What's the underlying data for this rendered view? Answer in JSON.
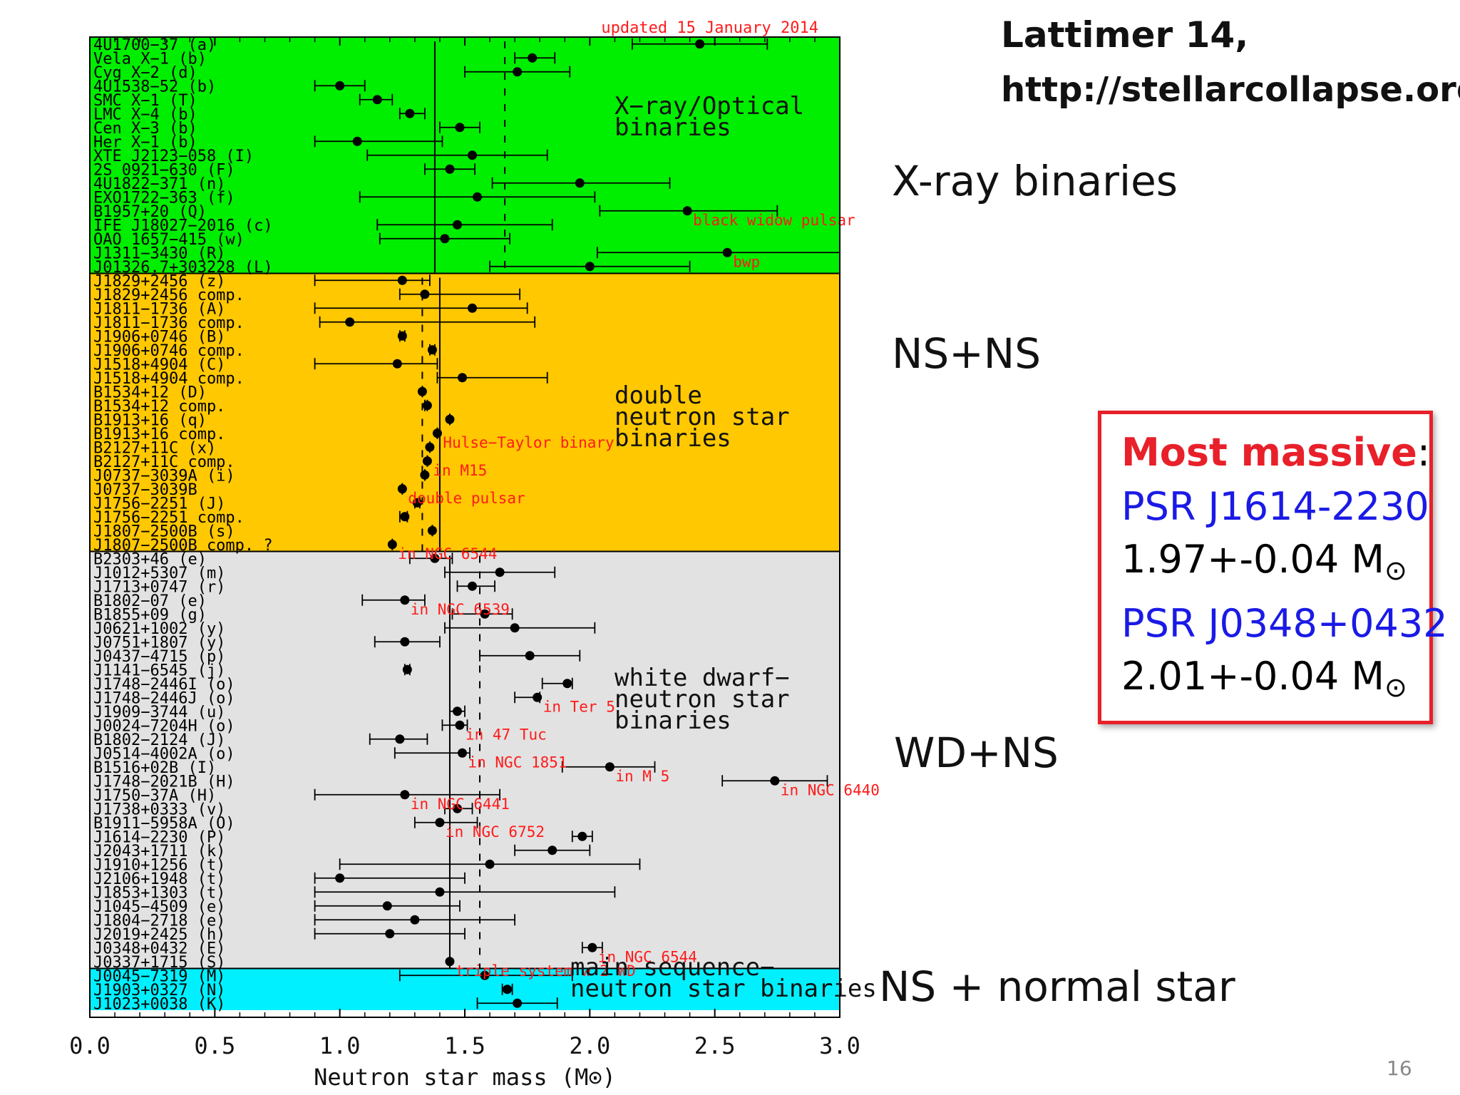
{
  "header": {
    "credit_title": "Lattimer 14,",
    "credit_url": "http://stellarcollapse.org"
  },
  "side_labels": {
    "xray": "X-ray binaries",
    "nsns": "NS+NS",
    "wdns": "WD+NS",
    "ms": "NS + normal star"
  },
  "highlight_box": {
    "title": "Most massive",
    "colon": ":",
    "pulsar1": "PSR J1614-2230",
    "mass1": "1.97+-0.04 M",
    "pulsar2": "PSR J0348+0432",
    "mass2": "2.01+-0.04 M",
    "sun_symbol": "⊙"
  },
  "page_number": "16",
  "colors": {
    "xray": "#00ee00",
    "dns": "#ffc800",
    "wd": "#e2e2e2",
    "ms": "#00f0ff",
    "red": "#ff1a1a",
    "box_border": "#e8202a",
    "blue": "#1a1ae6"
  },
  "chart_data": {
    "type": "scatter",
    "title": "updated 15 January 2014",
    "xlabel": "Neutron star mass (M⊙)",
    "xlim": [
      0.0,
      3.0
    ],
    "x_ticks": [
      "0.0",
      "0.5",
      "1.0",
      "1.5",
      "2.0",
      "2.5",
      "3.0"
    ],
    "groups": [
      {
        "name": "X-ray/Optical binaries",
        "label_lines": [
          "X−ray/Optical",
          "binaries"
        ],
        "color": "#00ee00",
        "mean": 1.38,
        "median": 1.66,
        "points": [
          {
            "label": "4U1700−37 (a)",
            "m": 2.44,
            "lo": 2.17,
            "hi": 2.71
          },
          {
            "label": "Vela X−1 (b)",
            "m": 1.77,
            "lo": 1.7,
            "hi": 1.86
          },
          {
            "label": "Cyg X−2 (d)",
            "m": 1.71,
            "lo": 1.5,
            "hi": 1.92
          },
          {
            "label": "4U1538−52 (b)",
            "m": 1.0,
            "lo": 0.9,
            "hi": 1.1
          },
          {
            "label": "SMC X−1 (T)",
            "m": 1.15,
            "lo": 1.08,
            "hi": 1.21
          },
          {
            "label": "LMC X−4 (b)",
            "m": 1.28,
            "lo": 1.24,
            "hi": 1.34
          },
          {
            "label": "Cen X−3 (b)",
            "m": 1.48,
            "lo": 1.4,
            "hi": 1.56
          },
          {
            "label": "Her X−1 (b)",
            "m": 1.07,
            "lo": 0.9,
            "hi": 1.41
          },
          {
            "label": "XTE J2123−058 (I)",
            "m": 1.53,
            "lo": 1.11,
            "hi": 1.83
          },
          {
            "label": "2S 0921−630 (F)",
            "m": 1.44,
            "lo": 1.34,
            "hi": 1.54
          },
          {
            "label": "4U1822−371 (n)",
            "m": 1.96,
            "lo": 1.61,
            "hi": 2.32
          },
          {
            "label": "EXO1722−363 (f)",
            "m": 1.55,
            "lo": 1.08,
            "hi": 2.02
          },
          {
            "label": "B1957+20 (Q)",
            "m": 2.39,
            "lo": 2.04,
            "hi": 2.75,
            "note": "black widow pulsar"
          },
          {
            "label": "IFE J18027−2016 (c)",
            "m": 1.47,
            "lo": 1.15,
            "hi": 1.85
          },
          {
            "label": "OAO 1657−415 (w)",
            "m": 1.42,
            "lo": 1.16,
            "hi": 1.68
          },
          {
            "label": "J1311−3430 (R)",
            "m": 2.55,
            "lo": 2.03,
            "hi": 3.0,
            "note": "bwp"
          },
          {
            "label": "J01326.7+303228 (L)",
            "m": 2.0,
            "lo": 1.6,
            "hi": 2.4
          }
        ]
      },
      {
        "name": "double neutron star binaries",
        "label_lines": [
          "double",
          "neutron star",
          "binaries"
        ],
        "color": "#ffc800",
        "mean": 1.4,
        "median": 1.33,
        "points": [
          {
            "label": "J1829+2456 (z)",
            "m": 1.25,
            "lo": 0.9,
            "hi": 1.36
          },
          {
            "label": "J1829+2456 comp.",
            "m": 1.34,
            "lo": 1.24,
            "hi": 1.72
          },
          {
            "label": "J1811−1736 (A)",
            "m": 1.53,
            "lo": 0.9,
            "hi": 1.75
          },
          {
            "label": "J1811−1736 comp.",
            "m": 1.04,
            "lo": 0.92,
            "hi": 1.78
          },
          {
            "label": "J1906+0746 (B)",
            "m": 1.25,
            "lo": 1.24,
            "hi": 1.26
          },
          {
            "label": "J1906+0746 comp.",
            "m": 1.37,
            "lo": 1.36,
            "hi": 1.38
          },
          {
            "label": "J1518+4904 (C)",
            "m": 1.23,
            "lo": 0.9,
            "hi": 1.39
          },
          {
            "label": "J1518+4904 comp.",
            "m": 1.49,
            "lo": 1.39,
            "hi": 1.83
          },
          {
            "label": "B1534+12 (D)",
            "m": 1.33,
            "lo": 1.33,
            "hi": 1.33
          },
          {
            "label": "B1534+12 comp.",
            "m": 1.35,
            "lo": 1.34,
            "hi": 1.35
          },
          {
            "label": "B1913+16 (q)",
            "m": 1.44,
            "lo": 1.44,
            "hi": 1.44
          },
          {
            "label": "B1913+16 comp.",
            "m": 1.39,
            "lo": 1.39,
            "hi": 1.39,
            "note": "Hulse−Taylor binary"
          },
          {
            "label": "B2127+11C (x)",
            "m": 1.36,
            "lo": 1.36,
            "hi": 1.36
          },
          {
            "label": "B2127+11C comp.",
            "m": 1.35,
            "lo": 1.35,
            "hi": 1.35,
            "note": "in M15"
          },
          {
            "label": "J0737−3039A (i)",
            "m": 1.34,
            "lo": 1.34,
            "hi": 1.34
          },
          {
            "label": "J0737−3039B",
            "m": 1.25,
            "lo": 1.25,
            "hi": 1.25,
            "note": "double pulsar"
          },
          {
            "label": "J1756−2251 (J)",
            "m": 1.31,
            "lo": 1.3,
            "hi": 1.32
          },
          {
            "label": "J1756−2251 comp.",
            "m": 1.26,
            "lo": 1.24,
            "hi": 1.27
          },
          {
            "label": "J1807−2500B (s)",
            "m": 1.37,
            "lo": 1.37,
            "hi": 1.37
          },
          {
            "label": "J1807−2500B comp. ?",
            "m": 1.21,
            "lo": 1.21,
            "hi": 1.21,
            "note": "in NGC 6544"
          }
        ]
      },
      {
        "name": "white dwarf−neutron star binaries",
        "label_lines": [
          "white dwarf−",
          "neutron star",
          "binaries"
        ],
        "color": "#e2e2e2",
        "mean": 1.44,
        "median": 1.56,
        "points": [
          {
            "label": "B2303+46 (e)",
            "m": 1.38,
            "lo": 1.28,
            "hi": 1.45
          },
          {
            "label": "J1012+5307 (m)",
            "m": 1.64,
            "lo": 1.42,
            "hi": 1.86
          },
          {
            "label": "J1713+0747 (r)",
            "m": 1.53,
            "lo": 1.47,
            "hi": 1.62
          },
          {
            "label": "B1802−07 (e)",
            "m": 1.26,
            "lo": 1.09,
            "hi": 1.34,
            "note": "in NGC 6539"
          },
          {
            "label": "B1855+09 (g)",
            "m": 1.58,
            "lo": 1.45,
            "hi": 1.69
          },
          {
            "label": "J0621+1002 (y)",
            "m": 1.7,
            "lo": 1.42,
            "hi": 2.02
          },
          {
            "label": "J0751+1807 (y)",
            "m": 1.26,
            "lo": 1.14,
            "hi": 1.4
          },
          {
            "label": "J0437−4715 (p)",
            "m": 1.76,
            "lo": 1.56,
            "hi": 1.96
          },
          {
            "label": "J1141−6545 (j)",
            "m": 1.27,
            "lo": 1.26,
            "hi": 1.28
          },
          {
            "label": "J1748−2446I (o)",
            "m": 1.91,
            "lo": 1.81,
            "hi": 1.93
          },
          {
            "label": "J1748−2446J (o)",
            "m": 1.79,
            "lo": 1.7,
            "hi": 1.8,
            "note": "in Ter 5"
          },
          {
            "label": "J1909−3744 (u)",
            "m": 1.47,
            "lo": 1.44,
            "hi": 1.5
          },
          {
            "label": "J0024−7204H (o)",
            "m": 1.48,
            "lo": 1.41,
            "hi": 1.51,
            "note": "in 47 Tuc"
          },
          {
            "label": "B1802−2124 (J)",
            "m": 1.24,
            "lo": 1.12,
            "hi": 1.35
          },
          {
            "label": "J0514−4002A (o)",
            "m": 1.49,
            "lo": 1.22,
            "hi": 1.52,
            "note": "in NGC 1851"
          },
          {
            "label": "B1516+02B (I)",
            "m": 2.08,
            "lo": 1.89,
            "hi": 2.26,
            "note": "in M 5"
          },
          {
            "label": "J1748−2021B (H)",
            "m": 2.74,
            "lo": 2.53,
            "hi": 2.95,
            "note": "in NGC 6440"
          },
          {
            "label": "J1750−37A (H)",
            "m": 1.26,
            "lo": 0.9,
            "hi": 1.64,
            "note": "in NGC 6441"
          },
          {
            "label": "J1738+0333 (v)",
            "m": 1.47,
            "lo": 1.42,
            "hi": 1.53
          },
          {
            "label": "B1911−5958A (O)",
            "m": 1.4,
            "lo": 1.3,
            "hi": 1.55,
            "note": "in NGC 6752"
          },
          {
            "label": "J1614−2230 (P)",
            "m": 1.97,
            "lo": 1.93,
            "hi": 2.01
          },
          {
            "label": "J2043+1711 (k)",
            "m": 1.85,
            "lo": 1.7,
            "hi": 2.0
          },
          {
            "label": "J1910+1256 (t)",
            "m": 1.6,
            "lo": 1.0,
            "hi": 2.2
          },
          {
            "label": "J2106+1948 (t)",
            "m": 1.0,
            "lo": 0.9,
            "hi": 1.5
          },
          {
            "label": "J1853+1303 (t)",
            "m": 1.4,
            "lo": 0.9,
            "hi": 2.1
          },
          {
            "label": "J1045−4509 (e)",
            "m": 1.19,
            "lo": 0.9,
            "hi": 1.48
          },
          {
            "label": "J1804−2718 (e)",
            "m": 1.3,
            "lo": 0.9,
            "hi": 1.7
          },
          {
            "label": "J2019+2425 (h)",
            "m": 1.2,
            "lo": 0.9,
            "hi": 1.5
          },
          {
            "label": "J0348+0432 (E)",
            "m": 2.01,
            "lo": 1.97,
            "hi": 2.05,
            "note": "in NGC 6544"
          },
          {
            "label": "J0337+1715 (S)",
            "m": 1.44,
            "lo": 1.44,
            "hi": 1.44,
            "note": "triple system w 2 WD"
          }
        ]
      },
      {
        "name": "main sequence−neutron star binaries",
        "label_lines": [
          "main sequence−",
          "neutron star binaries"
        ],
        "color": "#00f0ff",
        "mean": null,
        "median": null,
        "points": [
          {
            "label": "J0045−7319 (M)",
            "m": 1.58,
            "lo": 1.24,
            "hi": 1.93
          },
          {
            "label": "J1903+0327 (N)",
            "m": 1.67,
            "lo": 1.65,
            "hi": 1.69
          },
          {
            "label": "J1023+0038 (K)",
            "m": 1.71,
            "lo": 1.55,
            "hi": 1.87
          }
        ]
      }
    ]
  }
}
